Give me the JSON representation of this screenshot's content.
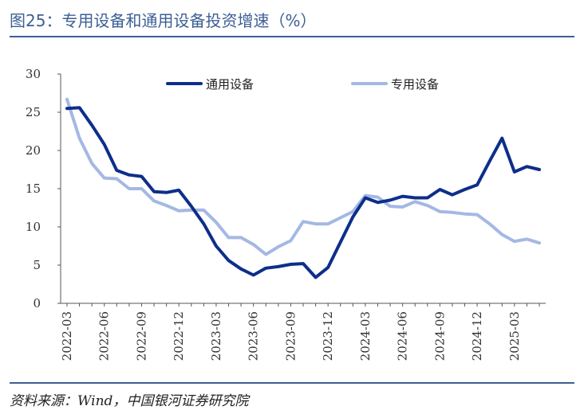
{
  "figure": {
    "title": "图25：专用设备和通用设备投资增速（%）",
    "source": "资料来源：Wind，中国银河证券研究院"
  },
  "chart_data": {
    "type": "line",
    "ylim": [
      0,
      30
    ],
    "yticks": [
      0,
      5,
      10,
      15,
      20,
      25,
      30
    ],
    "x_labels": [
      "2022-03",
      "2022-06",
      "2022-09",
      "2022-12",
      "2023-03",
      "2023-06",
      "2023-09",
      "2023-12",
      "2024-03",
      "2024-06",
      "2024-09",
      "2024-12",
      "2025-03"
    ],
    "x": [
      "2022-03",
      "2022-04",
      "2022-05",
      "2022-06",
      "2022-07",
      "2022-08",
      "2022-09",
      "2022-10",
      "2022-11",
      "2022-12",
      "2023-01",
      "2023-02",
      "2023-03",
      "2023-04",
      "2023-05",
      "2023-06",
      "2023-07",
      "2023-08",
      "2023-09",
      "2023-10",
      "2023-11",
      "2023-12",
      "2024-01",
      "2024-02",
      "2024-03",
      "2024-04",
      "2024-05",
      "2024-06",
      "2024-07",
      "2024-08",
      "2024-09",
      "2024-10",
      "2024-11",
      "2024-12",
      "2025-01",
      "2025-02",
      "2025-03",
      "2025-04",
      "2025-05"
    ],
    "legend_position": "top",
    "grid": false,
    "series": [
      {
        "name": "通用设备",
        "color": "#0d2e8a",
        "values": [
          25.5,
          25.6,
          23.3,
          20.8,
          17.4,
          16.8,
          16.6,
          14.6,
          14.5,
          14.8,
          12.7,
          10.4,
          7.5,
          5.6,
          4.5,
          3.7,
          4.6,
          4.8,
          5.1,
          5.2,
          3.4,
          4.7,
          8.0,
          11.3,
          13.8,
          13.2,
          13.5,
          14.0,
          13.8,
          13.8,
          14.9,
          14.2,
          14.9,
          15.5,
          18.6,
          21.6,
          17.2,
          17.9,
          17.5
        ]
      },
      {
        "name": "专用设备",
        "color": "#a4b8e3",
        "values": [
          26.7,
          21.6,
          18.3,
          16.4,
          16.3,
          15.0,
          15.0,
          13.4,
          12.8,
          12.1,
          12.2,
          12.2,
          10.6,
          8.6,
          8.6,
          7.7,
          6.4,
          7.4,
          8.2,
          10.7,
          10.4,
          10.4,
          11.2,
          12.0,
          14.1,
          13.9,
          12.7,
          12.6,
          13.3,
          12.8,
          12.0,
          11.9,
          11.7,
          11.6,
          10.4,
          9.0,
          8.1,
          8.4,
          7.9
        ]
      }
    ]
  }
}
